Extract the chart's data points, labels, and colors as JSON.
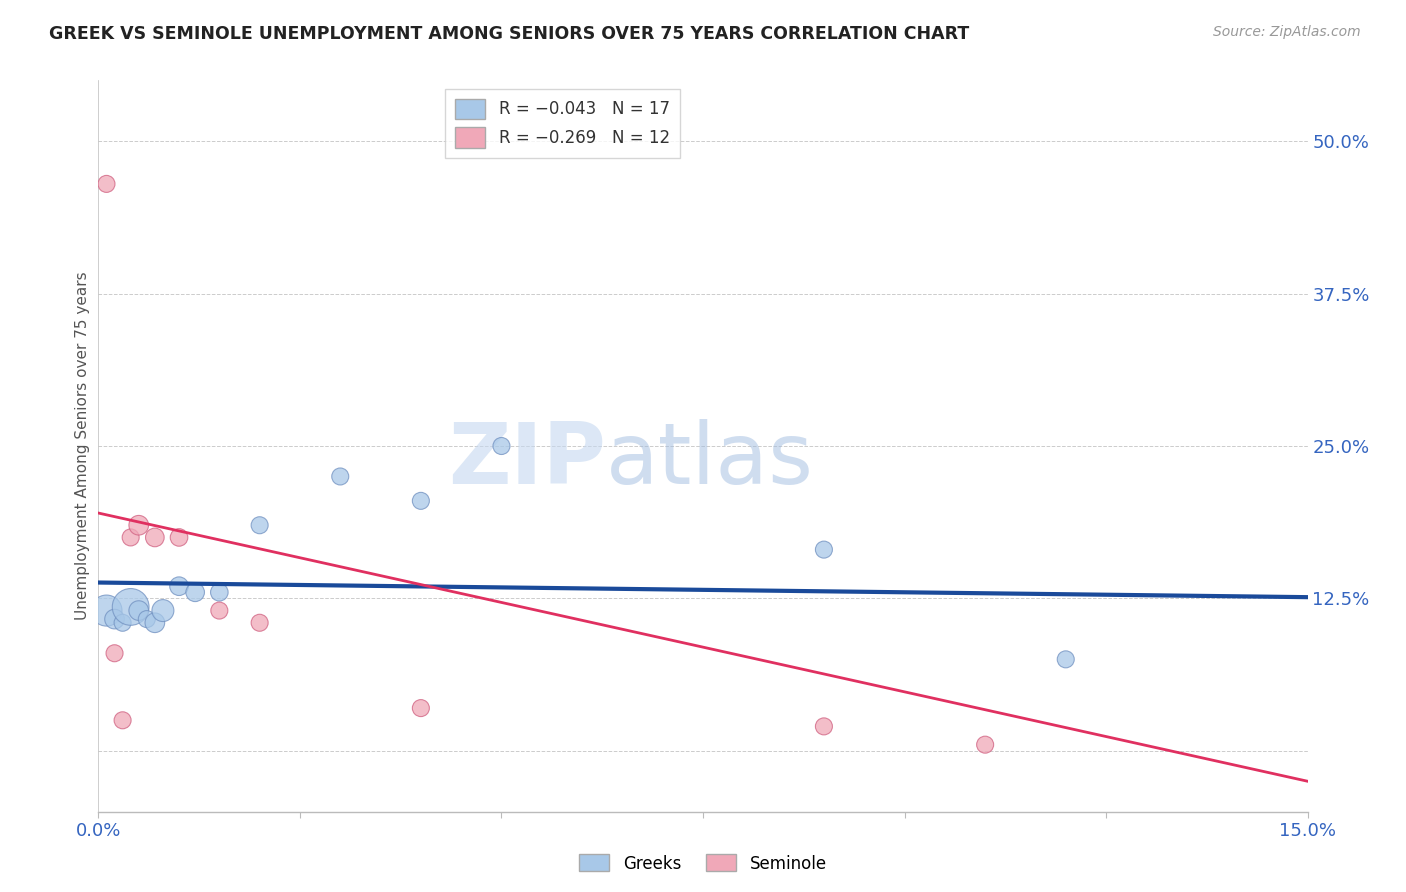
{
  "title": "GREEK VS SEMINOLE UNEMPLOYMENT AMONG SENIORS OVER 75 YEARS CORRELATION CHART",
  "source": "Source: ZipAtlas.com",
  "ylabel": "Unemployment Among Seniors over 75 years",
  "xlim": [
    0.0,
    0.15
  ],
  "ylim": [
    -0.05,
    0.55
  ],
  "right_yticks": [
    0.0,
    0.125,
    0.25,
    0.375,
    0.5
  ],
  "right_yticklabels": [
    "",
    "12.5%",
    "25.0%",
    "37.5%",
    "50.0%"
  ],
  "xticks": [
    0.0,
    0.025,
    0.05,
    0.075,
    0.1,
    0.125,
    0.15
  ],
  "xticklabels": [
    "0.0%",
    "",
    "",
    "",
    "",
    "",
    "15.0%"
  ],
  "blue_color": "#a8c8e8",
  "pink_color": "#f0a8b8",
  "blue_edge_color": "#7090c0",
  "pink_edge_color": "#d06080",
  "blue_line_color": "#1a4a9a",
  "pink_line_color": "#e03060",
  "watermark_zip": "ZIP",
  "watermark_atlas": "atlas",
  "background_color": "#ffffff",
  "greek_x": [
    0.001,
    0.002,
    0.003,
    0.004,
    0.005,
    0.006,
    0.007,
    0.008,
    0.01,
    0.012,
    0.015,
    0.02,
    0.03,
    0.04,
    0.05,
    0.09,
    0.12
  ],
  "greek_y": [
    0.115,
    0.108,
    0.105,
    0.118,
    0.115,
    0.108,
    0.105,
    0.115,
    0.135,
    0.13,
    0.13,
    0.185,
    0.225,
    0.205,
    0.25,
    0.165,
    0.075
  ],
  "greek_size": [
    500,
    200,
    150,
    700,
    200,
    150,
    200,
    250,
    180,
    180,
    160,
    150,
    150,
    150,
    150,
    150,
    150
  ],
  "seminole_x": [
    0.001,
    0.002,
    0.003,
    0.004,
    0.005,
    0.007,
    0.01,
    0.015,
    0.02,
    0.04,
    0.09,
    0.11
  ],
  "seminole_y": [
    0.465,
    0.08,
    0.025,
    0.175,
    0.185,
    0.175,
    0.175,
    0.115,
    0.105,
    0.035,
    0.02,
    0.005
  ],
  "seminole_size": [
    150,
    150,
    150,
    150,
    200,
    180,
    160,
    150,
    150,
    150,
    150,
    150
  ],
  "blue_line_x0": 0.0,
  "blue_line_y0": 0.138,
  "blue_line_x1": 0.15,
  "blue_line_y1": 0.126,
  "pink_line_x0": 0.0,
  "pink_line_y0": 0.195,
  "pink_line_x1": 0.15,
  "pink_line_y1": -0.025
}
